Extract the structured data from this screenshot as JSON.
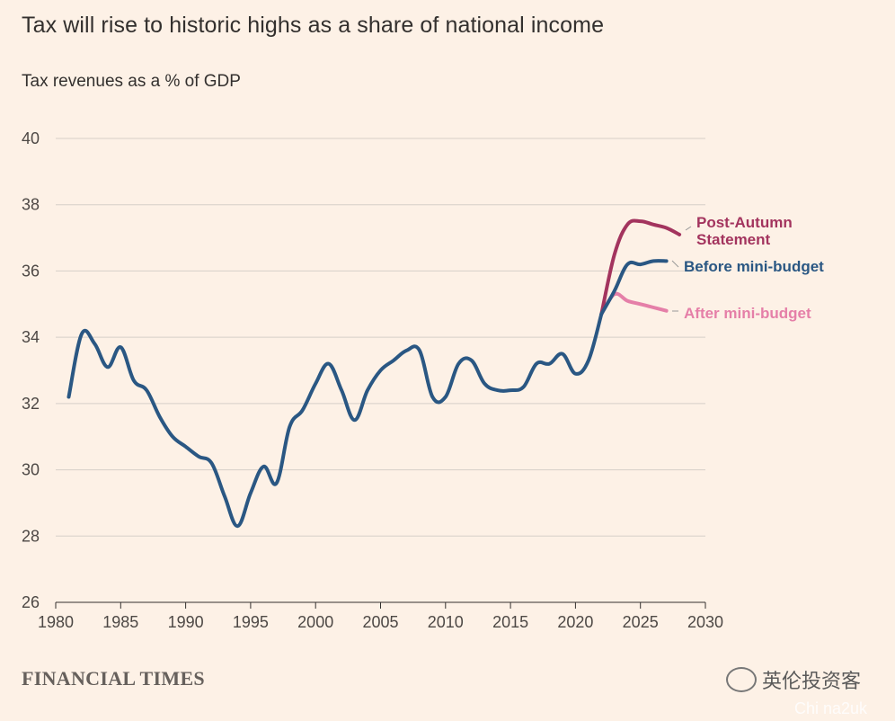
{
  "header": {
    "title": "Tax will rise to historic highs as a share of national income",
    "subtitle": "Tax revenues as a % of GDP"
  },
  "footer": {
    "source": "FINANCIAL TIMES",
    "watermark": "英伦投资客",
    "watermark_url": "Chi na2uk"
  },
  "colors": {
    "background": "#fdf1e6",
    "historical": "#2a5783",
    "before": "#2a5783",
    "post_autumn": "#a3345e",
    "after": "#e57fa8",
    "grid": "#d6cfc8"
  },
  "chart_data": {
    "type": "line",
    "title": "Tax will rise to historic highs as a share of national income",
    "ylabel": "Tax revenues as a % of GDP",
    "xlim": [
      1980,
      2030
    ],
    "ylim": [
      26,
      40
    ],
    "x_ticks": [
      1980,
      1985,
      1990,
      1995,
      2000,
      2005,
      2010,
      2015,
      2020,
      2025,
      2030
    ],
    "y_ticks": [
      26,
      28,
      30,
      32,
      34,
      36,
      38,
      40
    ],
    "grid": true,
    "series": [
      {
        "name": "",
        "color": "#2a5783",
        "points": [
          [
            1981,
            32.2
          ],
          [
            1982,
            34.1
          ],
          [
            1983,
            33.8
          ],
          [
            1984,
            33.1
          ],
          [
            1985,
            33.7
          ],
          [
            1986,
            32.7
          ],
          [
            1987,
            32.4
          ],
          [
            1988,
            31.6
          ],
          [
            1989,
            31.0
          ],
          [
            1990,
            30.7
          ],
          [
            1991,
            30.4
          ],
          [
            1992,
            30.2
          ],
          [
            1993,
            29.2
          ],
          [
            1994,
            28.3
          ],
          [
            1995,
            29.3
          ],
          [
            1996,
            30.1
          ],
          [
            1997,
            29.6
          ],
          [
            1998,
            31.3
          ],
          [
            1999,
            31.8
          ],
          [
            2000,
            32.6
          ],
          [
            2001,
            33.2
          ],
          [
            2002,
            32.4
          ],
          [
            2003,
            31.5
          ],
          [
            2004,
            32.4
          ],
          [
            2005,
            33.0
          ],
          [
            2006,
            33.3
          ],
          [
            2007,
            33.6
          ],
          [
            2008,
            33.6
          ],
          [
            2009,
            32.2
          ],
          [
            2010,
            32.2
          ],
          [
            2011,
            33.2
          ],
          [
            2012,
            33.3
          ],
          [
            2013,
            32.6
          ],
          [
            2014,
            32.4
          ],
          [
            2015,
            32.4
          ],
          [
            2016,
            32.5
          ],
          [
            2017,
            33.2
          ],
          [
            2018,
            33.2
          ],
          [
            2019,
            33.5
          ],
          [
            2020,
            32.9
          ],
          [
            2021,
            33.3
          ],
          [
            2022,
            34.7
          ]
        ]
      },
      {
        "name": "Before mini-budget",
        "color": "#2a5783",
        "points": [
          [
            2022,
            34.7
          ],
          [
            2023,
            35.4
          ],
          [
            2024,
            36.2
          ],
          [
            2025,
            36.2
          ],
          [
            2026,
            36.3
          ],
          [
            2027,
            36.3
          ]
        ]
      },
      {
        "name": "Post-Autumn Statement",
        "color": "#a3345e",
        "points": [
          [
            2022,
            34.7
          ],
          [
            2023,
            36.5
          ],
          [
            2024,
            37.4
          ],
          [
            2025,
            37.5
          ],
          [
            2026,
            37.4
          ],
          [
            2027,
            37.3
          ],
          [
            2028,
            37.1
          ]
        ]
      },
      {
        "name": "After mini-budget",
        "color": "#e57fa8",
        "points": [
          [
            2022,
            34.7
          ],
          [
            2023,
            35.3
          ],
          [
            2024,
            35.1
          ],
          [
            2025,
            35.0
          ],
          [
            2026,
            34.9
          ],
          [
            2027,
            34.8
          ]
        ]
      }
    ],
    "annotations": [
      {
        "text_lines": [
          "Post-Autumn",
          "Statement"
        ],
        "series": "Post-Autumn Statement"
      },
      {
        "text_lines": [
          "Before mini-budget"
        ],
        "series": "Before mini-budget"
      },
      {
        "text_lines": [
          "After mini-budget"
        ],
        "series": "After mini-budget"
      }
    ]
  }
}
